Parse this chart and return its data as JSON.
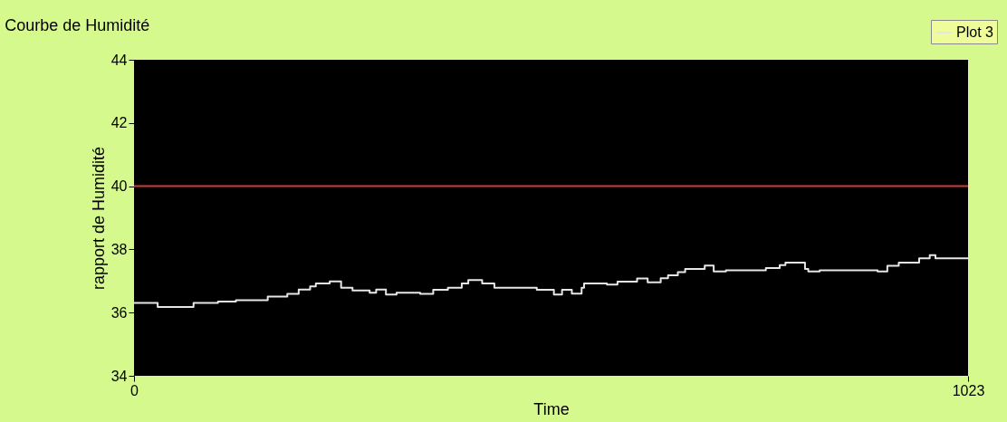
{
  "chart_data": {
    "type": "step",
    "title": "Courbe de Humidité",
    "xlabel": "Time",
    "ylabel": "rapport de Humidité",
    "xlim": [
      0,
      1023
    ],
    "xticks": [
      0,
      1023
    ],
    "ylim": [
      34,
      44
    ],
    "yticks": [
      34,
      36,
      38,
      40,
      42,
      44
    ],
    "grid": false,
    "legend": "top right",
    "ref_lines": [
      {
        "axis": "y",
        "value": 40,
        "color": "#d03a3a"
      }
    ],
    "series": [
      {
        "name": "Plot 3",
        "color": "#e6e6e6",
        "x": [
          0,
          7,
          29,
          73,
          103,
          125,
          164,
          188,
          202,
          216,
          223,
          240,
          254,
          268,
          289,
          297,
          309,
          322,
          351,
          367,
          385,
          402,
          410,
          427,
          442,
          473,
          494,
          515,
          525,
          537,
          549,
          552,
          580,
          593,
          617,
          630,
          646,
          655,
          667,
          676,
          700,
          711,
          726,
          775,
          792,
          799,
          823,
          827,
          841,
          912,
          924,
          938,
          963,
          976,
          983,
          1023
        ],
        "values": [
          36.31,
          36.31,
          36.18,
          36.31,
          36.35,
          36.39,
          36.51,
          36.59,
          36.73,
          36.83,
          36.92,
          36.99,
          36.79,
          36.7,
          36.63,
          36.73,
          36.57,
          36.63,
          36.59,
          36.72,
          36.79,
          36.92,
          37.03,
          36.92,
          36.79,
          36.79,
          36.72,
          36.57,
          36.72,
          36.6,
          36.79,
          36.92,
          36.89,
          36.98,
          37.08,
          36.96,
          37.09,
          37.18,
          37.28,
          37.38,
          37.49,
          37.3,
          37.34,
          37.41,
          37.5,
          37.58,
          37.38,
          37.3,
          37.34,
          37.3,
          37.48,
          37.58,
          37.72,
          37.82,
          37.72,
          37.72
        ]
      }
    ]
  }
}
